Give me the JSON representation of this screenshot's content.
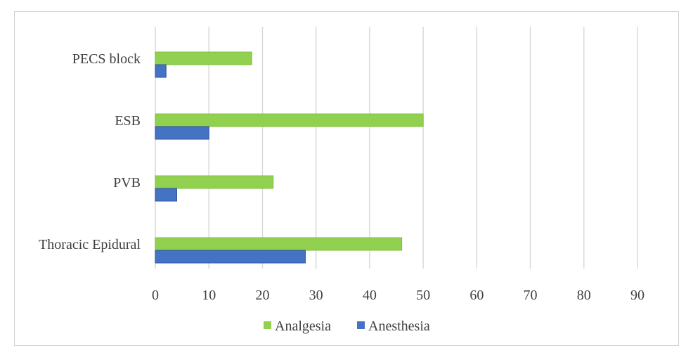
{
  "chart_data": {
    "type": "bar",
    "orientation": "horizontal",
    "categories": [
      "PECS block",
      "ESB",
      "PVB",
      "Thoracic Epidural"
    ],
    "series": [
      {
        "name": "Analgesia",
        "values": [
          18,
          50,
          22,
          46
        ],
        "color": "#92d050"
      },
      {
        "name": "Anesthesia",
        "values": [
          2,
          10,
          4,
          28
        ],
        "color": "#4472c4"
      }
    ],
    "xlim": [
      0,
      90
    ],
    "xticks": [
      0,
      10,
      20,
      30,
      40,
      50,
      60,
      70,
      80,
      90
    ],
    "grid": true,
    "legend": "bottom",
    "title": "",
    "xlabel": "",
    "ylabel": ""
  }
}
